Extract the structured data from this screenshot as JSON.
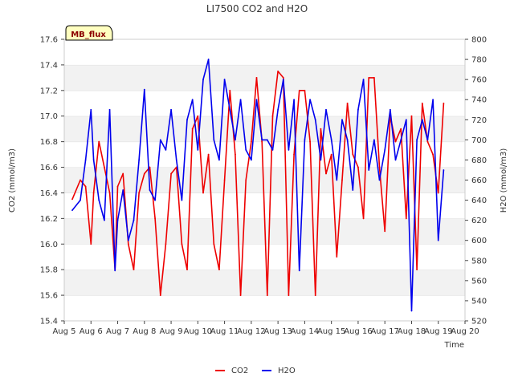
{
  "chart_data": {
    "type": "line",
    "title": "LI7500 CO2 and H2O",
    "site_label": "MB_flux",
    "xlabel": "Time",
    "ylabel": "CO2 (mmol/m3)",
    "y2label": "H2O (mmol/m3)",
    "xlim": [
      5,
      20
    ],
    "ylim": [
      15.4,
      17.6
    ],
    "y2lim": [
      520,
      800
    ],
    "x_ticks": [
      5,
      6,
      7,
      8,
      9,
      10,
      11,
      12,
      13,
      14,
      15,
      16,
      17,
      18,
      19,
      20
    ],
    "x_tick_labels": [
      "Aug 5",
      "Aug 6",
      "Aug 7",
      "Aug 8",
      "Aug 9",
      "Aug 10",
      "Aug 11",
      "Aug 12",
      "Aug 13",
      "Aug 14",
      "Aug 15",
      "Aug 16",
      "Aug 17",
      "Aug 18",
      "Aug 19",
      "Aug 20"
    ],
    "y_ticks": [
      15.4,
      15.6,
      15.8,
      16.0,
      16.2,
      16.4,
      16.6,
      16.8,
      17.0,
      17.2,
      17.4,
      17.6
    ],
    "y_tick_labels": [
      "15.4",
      "15.6",
      "15.8",
      "16.0",
      "16.2",
      "16.4",
      "16.6",
      "16.8",
      "17.0",
      "17.2",
      "17.4",
      "17.6"
    ],
    "y2_ticks": [
      520,
      540,
      560,
      580,
      600,
      620,
      640,
      660,
      680,
      700,
      720,
      740,
      760,
      780,
      800
    ],
    "y2_tick_labels": [
      "520",
      "540",
      "560",
      "580",
      "600",
      "620",
      "640",
      "660",
      "680",
      "700",
      "720",
      "740",
      "760",
      "780",
      "800"
    ],
    "grid": "horizontal bands",
    "legend_position": "bottom-center",
    "series": [
      {
        "name": "CO2",
        "axis": "left",
        "color": "#ee0000",
        "x": [
          5.3,
          5.6,
          5.8,
          6.0,
          6.1,
          6.3,
          6.5,
          6.7,
          6.9,
          7.0,
          7.2,
          7.4,
          7.6,
          7.8,
          8.0,
          8.2,
          8.4,
          8.6,
          8.8,
          9.0,
          9.2,
          9.4,
          9.6,
          9.8,
          10.0,
          10.2,
          10.4,
          10.6,
          10.8,
          11.0,
          11.2,
          11.4,
          11.6,
          11.8,
          12.0,
          12.2,
          12.4,
          12.6,
          12.8,
          13.0,
          13.2,
          13.4,
          13.6,
          13.8,
          14.0,
          14.2,
          14.4,
          14.6,
          14.8,
          15.0,
          15.2,
          15.4,
          15.6,
          15.8,
          16.0,
          16.2,
          16.4,
          16.6,
          16.8,
          17.0,
          17.2,
          17.4,
          17.6,
          17.8,
          18.0,
          18.2,
          18.4,
          18.6,
          18.8,
          19.0,
          19.2
        ],
        "values": [
          16.35,
          16.5,
          16.45,
          16.0,
          16.4,
          16.8,
          16.6,
          16.4,
          15.8,
          16.45,
          16.55,
          16.0,
          15.8,
          16.4,
          16.55,
          16.6,
          16.2,
          15.6,
          16.0,
          16.55,
          16.6,
          16.0,
          15.8,
          16.9,
          17.0,
          16.4,
          16.7,
          16.0,
          15.8,
          16.5,
          17.2,
          16.7,
          15.6,
          16.5,
          16.8,
          17.3,
          16.8,
          15.6,
          17.0,
          17.35,
          17.3,
          15.6,
          16.7,
          17.2,
          17.2,
          16.8,
          15.6,
          16.9,
          16.55,
          16.7,
          15.9,
          16.5,
          17.1,
          16.7,
          16.6,
          16.2,
          17.3,
          17.3,
          16.6,
          16.1,
          17.0,
          16.8,
          16.9,
          16.2,
          17.0,
          15.8,
          17.1,
          16.8,
          16.7,
          16.4,
          17.1
        ]
      },
      {
        "name": "H2O",
        "axis": "right",
        "color": "#0000ee",
        "x": [
          5.3,
          5.6,
          5.8,
          6.0,
          6.1,
          6.3,
          6.5,
          6.7,
          6.9,
          7.0,
          7.2,
          7.4,
          7.6,
          7.8,
          8.0,
          8.2,
          8.4,
          8.6,
          8.8,
          9.0,
          9.2,
          9.4,
          9.6,
          9.8,
          10.0,
          10.2,
          10.4,
          10.6,
          10.8,
          11.0,
          11.2,
          11.4,
          11.6,
          11.8,
          12.0,
          12.2,
          12.4,
          12.6,
          12.8,
          13.0,
          13.2,
          13.4,
          13.6,
          13.8,
          14.0,
          14.2,
          14.4,
          14.6,
          14.8,
          15.0,
          15.2,
          15.4,
          15.6,
          15.8,
          16.0,
          16.2,
          16.4,
          16.6,
          16.8,
          17.0,
          17.2,
          17.4,
          17.6,
          17.8,
          18.0,
          18.2,
          18.4,
          18.6,
          18.8,
          19.0,
          19.2
        ],
        "values": [
          630,
          640,
          680,
          730,
          680,
          640,
          620,
          730,
          570,
          620,
          650,
          600,
          620,
          680,
          750,
          650,
          640,
          700,
          690,
          730,
          680,
          640,
          720,
          740,
          690,
          760,
          780,
          700,
          680,
          760,
          730,
          700,
          740,
          690,
          680,
          740,
          700,
          700,
          690,
          730,
          760,
          690,
          740,
          570,
          700,
          740,
          720,
          680,
          730,
          700,
          660,
          720,
          700,
          650,
          730,
          760,
          670,
          700,
          660,
          690,
          730,
          680,
          700,
          720,
          530,
          700,
          720,
          700,
          740,
          600,
          670
        ]
      }
    ]
  },
  "legend": {
    "items": [
      {
        "label": "CO2",
        "color": "#ee0000"
      },
      {
        "label": "H2O",
        "color": "#0000ee"
      }
    ]
  }
}
